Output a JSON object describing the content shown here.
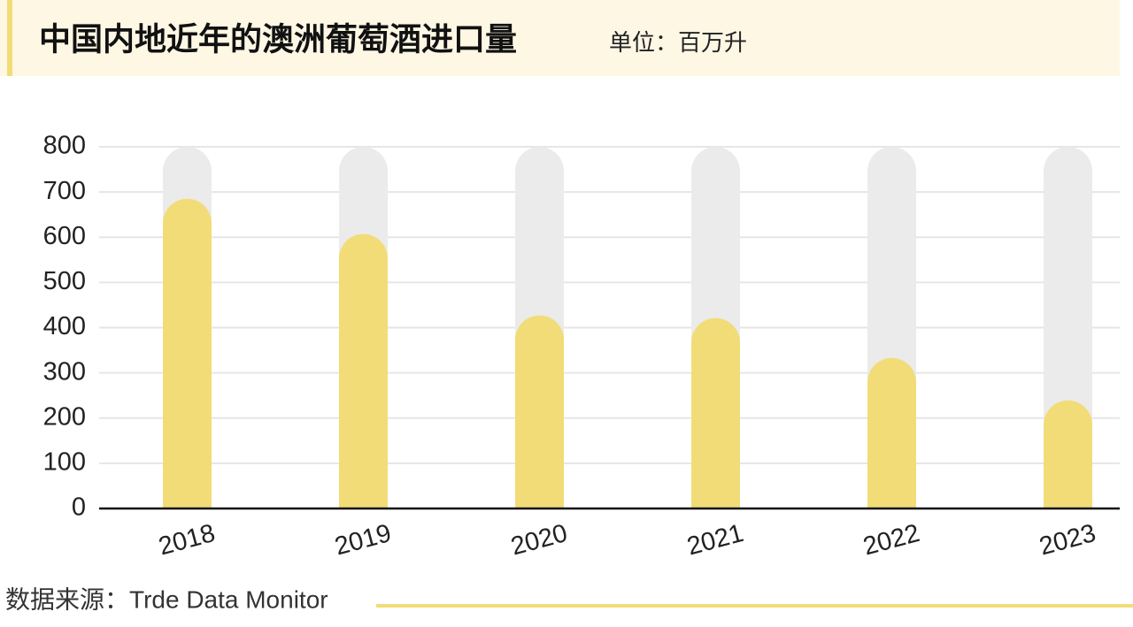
{
  "chart_data": {
    "type": "bar",
    "title": "中国内地近年的澳洲葡萄酒进口量",
    "subtitle": "单位：百万升",
    "source": "数据来源：Trde Data Monitor",
    "categories": [
      "2018",
      "2019",
      "2020",
      "2021",
      "2022",
      "2023"
    ],
    "values": [
      685,
      607,
      427,
      421,
      333,
      239
    ],
    "color": "#f2dc78",
    "background_color": "#ebebeb",
    "ylim": [
      0,
      800
    ],
    "yticks": [
      0,
      100,
      200,
      300,
      400,
      500,
      600,
      700,
      800
    ],
    "grid": true
  }
}
